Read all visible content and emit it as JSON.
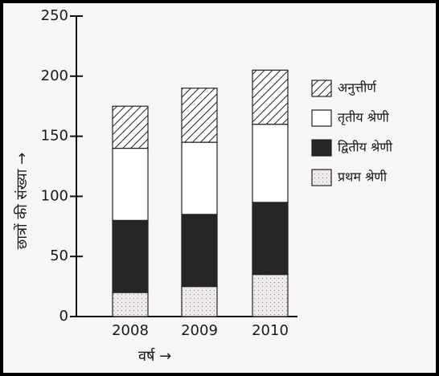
{
  "chart_data": {
    "type": "stacked_bar",
    "categories": [
      "2008",
      "2009",
      "2010"
    ],
    "series": [
      {
        "name": "प्रथम श्रेणी",
        "color": "#eeeaea",
        "pattern": "dots",
        "values": [
          20,
          25,
          35
        ]
      },
      {
        "name": "द्वितीय श्रेणी",
        "color": "#262626",
        "pattern": "solid",
        "values": [
          60,
          60,
          60
        ]
      },
      {
        "name": "तृतीय श्रेणी",
        "color": "#ffffff",
        "pattern": "solid",
        "values": [
          60,
          60,
          65
        ]
      },
      {
        "name": "अनुत्तीर्ण",
        "color": "#ffffff",
        "pattern": "hatch",
        "values": [
          35,
          45,
          45
        ]
      }
    ],
    "ylim": [
      0,
      250
    ],
    "yticks": [
      0,
      50,
      100,
      150,
      200,
      250
    ],
    "ylabel": "छात्रों की संख्या →",
    "xlabel": "वर्ष →",
    "legend": "right"
  }
}
